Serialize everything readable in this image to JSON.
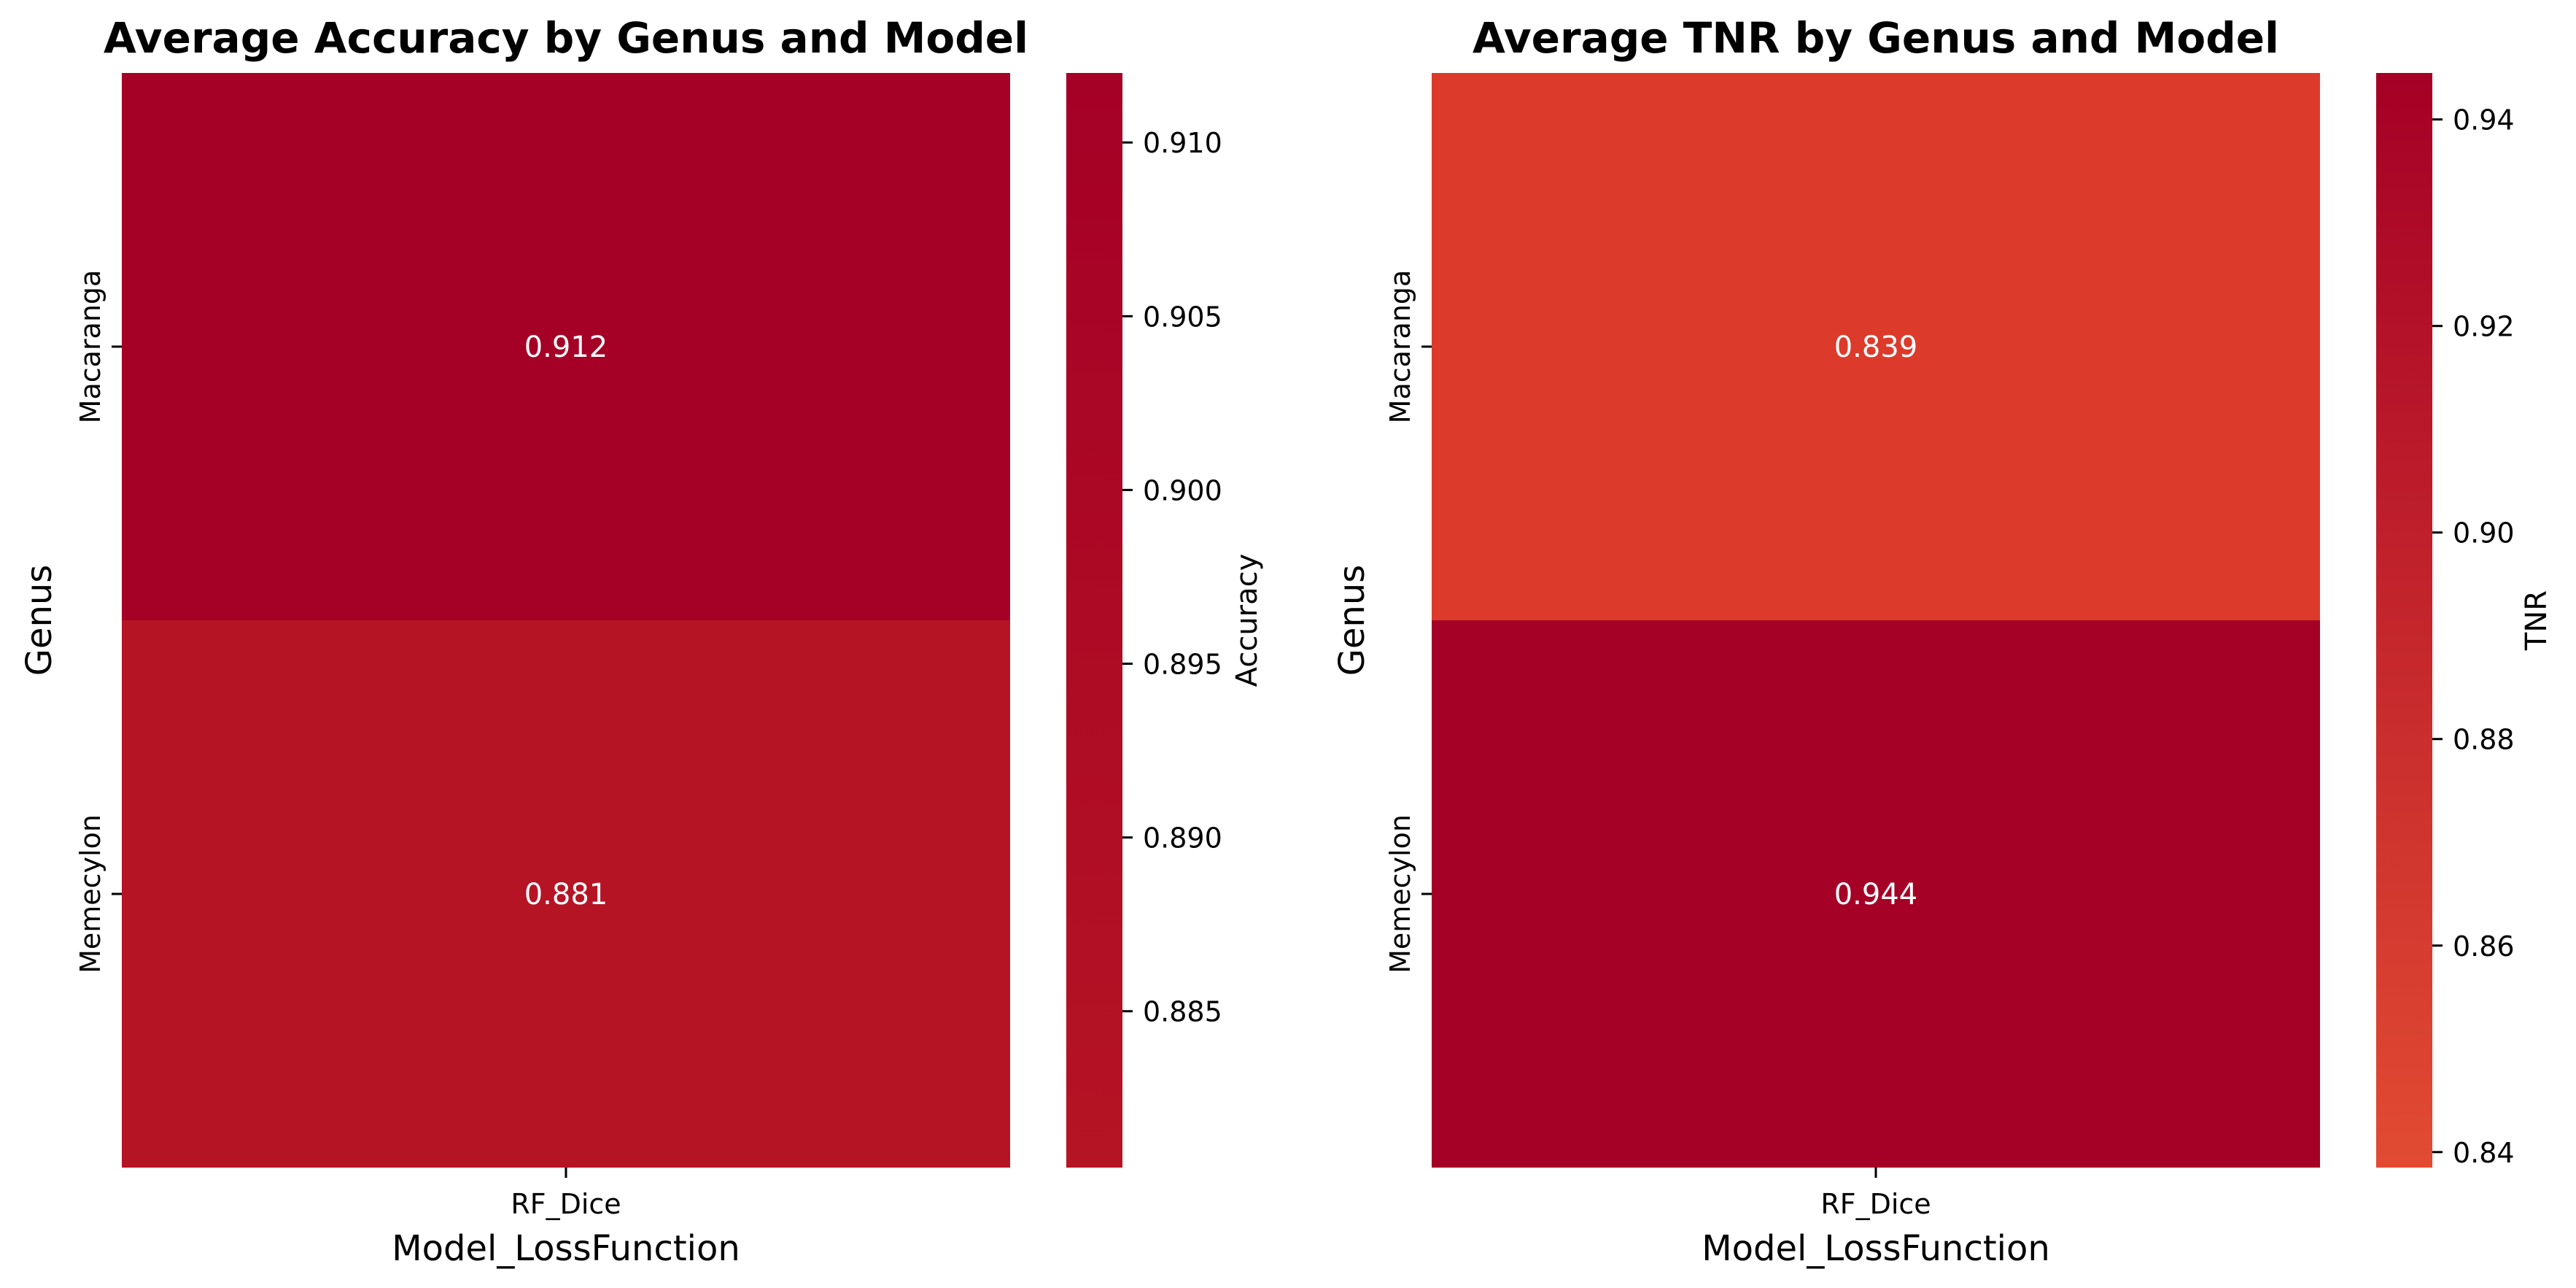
{
  "chart_data": [
    {
      "type": "heatmap",
      "title": "Average Accuracy by Genus and Model",
      "xlabel": "Model_LossFunction",
      "ylabel": "Genus",
      "x_categories": [
        "RF_Dice"
      ],
      "y_categories": [
        "Macaranga",
        "Memecylon"
      ],
      "values": [
        [
          0.912
        ],
        [
          0.881
        ]
      ],
      "value_labels": [
        [
          "0.912"
        ],
        [
          "0.881"
        ]
      ],
      "colors": [
        [
          "#a50026"
        ],
        [
          "#b51424"
        ]
      ],
      "colorbar": {
        "label": "Accuracy",
        "range": [
          0.8805,
          0.912
        ],
        "ticks": [
          0.885,
          0.89,
          0.895,
          0.9,
          0.905,
          0.91
        ],
        "tick_labels": [
          "0.885",
          "0.890",
          "0.895",
          "0.900",
          "0.905",
          "0.910"
        ],
        "color_low": "#b51424",
        "color_high": "#a50026"
      }
    },
    {
      "type": "heatmap",
      "title": "Average TNR by Genus and Model",
      "xlabel": "Model_LossFunction",
      "ylabel": "Genus",
      "x_categories": [
        "RF_Dice"
      ],
      "y_categories": [
        "Macaranga",
        "Memecylon"
      ],
      "values": [
        [
          0.839
        ],
        [
          0.944
        ]
      ],
      "value_labels": [
        [
          "0.839"
        ],
        [
          "0.944"
        ]
      ],
      "colors": [
        [
          "#dc3a2b"
        ],
        [
          "#a50026"
        ]
      ],
      "colorbar": {
        "label": "TNR",
        "range": [
          0.8385,
          0.9445
        ],
        "ticks": [
          0.84,
          0.86,
          0.88,
          0.9,
          0.92,
          0.94
        ],
        "tick_labels": [
          "0.84",
          "0.86",
          "0.88",
          "0.90",
          "0.92",
          "0.94"
        ],
        "color_low": "#e24b32",
        "color_high": "#a50026"
      }
    }
  ]
}
